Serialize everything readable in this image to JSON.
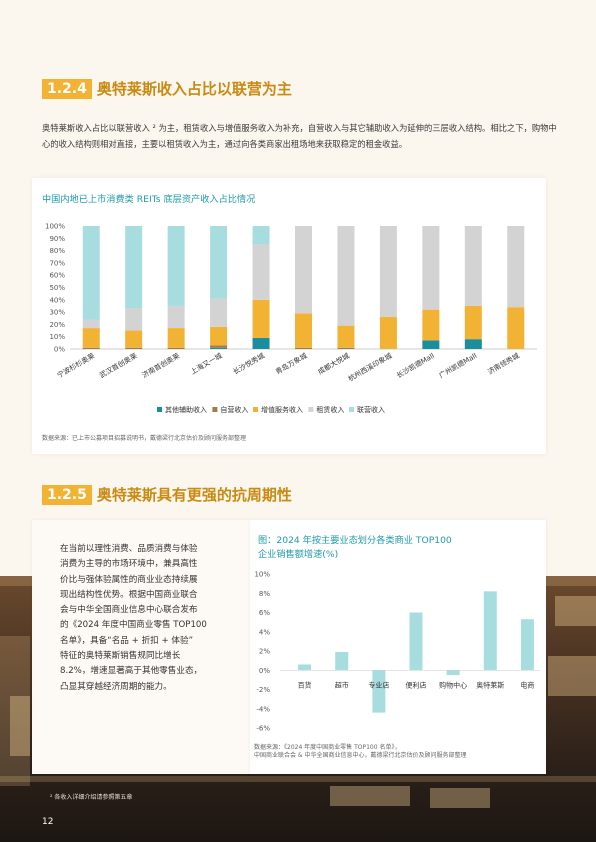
{
  "section1": {
    "number": "1.2.4",
    "title": "奥特莱斯收入占比以联营为主",
    "paragraph": "奥特莱斯收入占比以联营收入 ² 为主，租赁收入与增值服务收入为补充，自营收入与其它辅助收入为延伸的三层收入结构。相比之下，购物中心的收入结构则相对直接，主要以租赁收入为主，通过向各类商家出租场地来获取稳定的租金收益。"
  },
  "chart1": {
    "title": "中国内地已上市消费类 REITs 底层资产收入占比情况",
    "source": "数据来源：已上市公募项目招募说明书，戴德梁行北京估价及顾问服务部整理",
    "colors": {
      "other": "#1a8e9c",
      "self": "#a27b4c",
      "value_added": "#f2b233",
      "rent": "#d3d3d3",
      "joint": "#a8dde0"
    }
  },
  "chart_data": [
    {
      "type": "bar",
      "stacked": true,
      "categories": [
        "宁波杉杉奥莱",
        "武汉首创奥莱",
        "济南首创奥莱",
        "上海又一城",
        "长沙悦秀城",
        "青岛万象城",
        "成都大悦城",
        "杭州西溪印象城",
        "长沙凯德Mall",
        "广州凯德Mall",
        "济南领秀城"
      ],
      "series": [
        {
          "name": "其他辅助收入",
          "values": [
            0,
            0,
            0,
            1,
            9,
            0,
            0,
            0,
            7,
            8,
            0
          ]
        },
        {
          "name": "自营收入",
          "values": [
            1,
            1,
            1,
            2,
            0,
            1,
            1,
            0,
            0,
            0,
            0
          ]
        },
        {
          "name": "增值服务收入",
          "values": [
            16,
            14,
            16,
            15,
            31,
            28,
            18,
            26,
            25,
            27,
            34
          ]
        },
        {
          "name": "租赁收入",
          "values": [
            7,
            18,
            18,
            23,
            45,
            71,
            81,
            74,
            68,
            65,
            66
          ]
        },
        {
          "name": "联营收入",
          "values": [
            76,
            67,
            65,
            59,
            15,
            0,
            0,
            0,
            0,
            0,
            0
          ]
        }
      ],
      "ylim": [
        0,
        100
      ],
      "yticks": [
        "0%",
        "10%",
        "20%",
        "30%",
        "40%",
        "50%",
        "60%",
        "70%",
        "80%",
        "90%",
        "100%"
      ],
      "legend": "bottom"
    },
    {
      "type": "bar",
      "title": "图：2024 年按主要业态划分各类商业 TOP100 企业销售额增速(%)",
      "categories": [
        "百货",
        "超市",
        "专业店",
        "便利店",
        "购物中心",
        "奥特莱斯",
        "电商"
      ],
      "values": [
        0.6,
        1.9,
        -4.4,
        6.0,
        -0.5,
        8.2,
        5.3
      ],
      "ylim": [
        -6,
        10
      ],
      "yticks": [
        "10%",
        "8%",
        "6%",
        "4%",
        "2%",
        "0%",
        "-2%",
        "-4%",
        "-6%"
      ],
      "color": "#a8dde0"
    }
  ],
  "section2": {
    "number": "1.2.5",
    "title": "奥特莱斯具有更强的抗周期性",
    "left_lines": [
      "在当前以理性消费、品质消费与体验",
      "消费为主导的市场环境中，兼具高性",
      "价比与强体验属性的商业业态持续展",
      "现出结构性优势。根据中国商业联合",
      "会与中华全国商业信息中心联合发布",
      "的《2024 年度中国商业零售 TOP100",
      "名单》，具备“名品 + 折扣 + 体验”",
      "特征的奥特莱斯销售规同比增长",
      "8.2%，增速显著高于其他零售业态，",
      "凸显其穿越经济周期的能力。"
    ]
  },
  "chart2": {
    "title_line1": "图：2024 年按主要业态划分各类商业 TOP100",
    "title_line2": "企业销售额增速(%)",
    "source_line1": "数据来源：《2024 年度中国商业零售 TOP100 名单》，",
    "source_line2": "中国商业联合会 & 中华全国商业信息中心，戴德梁行北京估价及顾问服务部整理"
  },
  "footnote": "² 各收入详细介绍请参照第五章",
  "page_number": "12"
}
